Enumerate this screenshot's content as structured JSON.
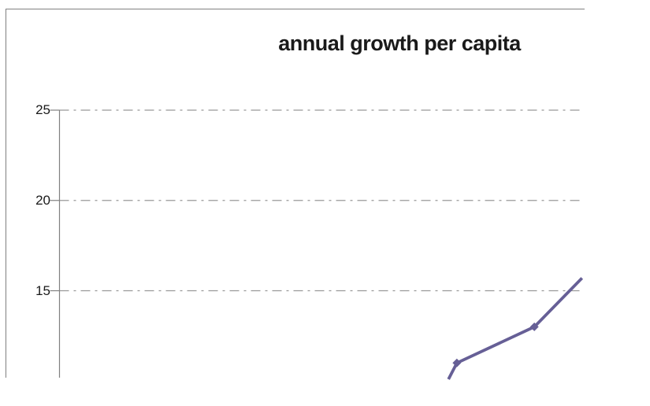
{
  "chart_data": {
    "type": "line",
    "title": "annual growth per capita",
    "xlabel": "",
    "ylabel": "",
    "yticks": [
      25,
      20,
      15
    ],
    "ytick_labels": [
      "25",
      "20",
      "15"
    ],
    "y_axis_max_visible": 25,
    "grid": "horizontal dash-dot major gridlines",
    "legend_position": "none",
    "x_axis_visible": false,
    "cropped": "chart is clipped at right edge and bottom edge; x-axis categories not visible",
    "series": [
      {
        "name": "annual growth per capita",
        "color": "#665f96",
        "marker": "diamond",
        "points": [
          {
            "x_frac": 0.743,
            "value": 10.1,
            "marker": false,
            "clipped": true
          },
          {
            "x_frac": 0.759,
            "value": 11.0,
            "marker": true,
            "clipped": false
          },
          {
            "x_frac": 0.907,
            "value": 13.0,
            "marker": true,
            "clipped": false
          },
          {
            "x_frac": 0.998,
            "value": 15.7,
            "marker": false,
            "clipped": true
          }
        ]
      }
    ]
  },
  "colors": {
    "background": "#ffffff",
    "chart_border": "#808080",
    "axis": "#808080",
    "gridline": "#999999",
    "tick": "#808080",
    "series": "#665f96",
    "title_text": "#1a1a1a"
  }
}
